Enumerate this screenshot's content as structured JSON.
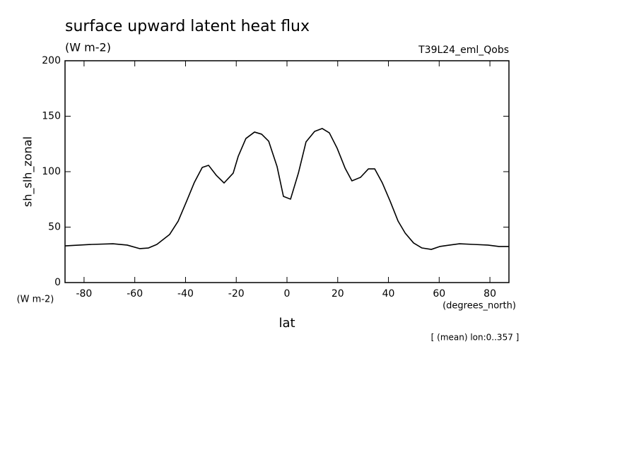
{
  "chart_data": {
    "type": "line",
    "title": "surface upward latent heat flux",
    "subtitle": "(W m-2)",
    "run_label": "T39L24_eml_Qobs",
    "y_label": "sh_slh_zonal",
    "y_units": "(W m-2)",
    "x_label": "lat",
    "x_units": "(degrees_north)",
    "note": "[ (mean) lon:0..357 ]",
    "x": [
      -87.5,
      -77,
      -68.6,
      -63,
      -58,
      -54.6,
      -51.3,
      -46.3,
      -42.9,
      -39.6,
      -36.5,
      -33.4,
      -30.9,
      -27.9,
      -24.8,
      -21.2,
      -19.2,
      -16.2,
      -12.8,
      -10,
      -7.2,
      -3.9,
      -1.4,
      1.4,
      4.5,
      7.5,
      10.9,
      13.9,
      16.7,
      19.8,
      22.9,
      25.6,
      29,
      32.1,
      34.6,
      37.6,
      40.7,
      43.8,
      46.6,
      49.9,
      53.2,
      56.9,
      60.2,
      64.1,
      68,
      73.6,
      79.2,
      83.6,
      87.5
    ],
    "series": [
      {
        "name": "sh_slh_zonal",
        "color": "#000000",
        "values": [
          33.1,
          34.4,
          35,
          33.8,
          30.6,
          31.2,
          34.4,
          43.3,
          55.4,
          73.2,
          90.4,
          103.8,
          105.7,
          96.8,
          89.8,
          98.7,
          114,
          129.9,
          135.7,
          133.8,
          127.4,
          104.5,
          77.7,
          75.2,
          98.7,
          126.8,
          136.3,
          138.9,
          135,
          121,
          103.2,
          91.7,
          94.9,
          102.5,
          102.5,
          89.8,
          73.2,
          55.4,
          44.6,
          35.7,
          31.2,
          29.9,
          32.5,
          33.8,
          35,
          34.4,
          33.8,
          32.5,
          32.5
        ]
      }
    ],
    "xlim": [
      -87.5,
      87.5
    ],
    "xticks": [
      -80,
      -60,
      -40,
      -20,
      0,
      20,
      40,
      60,
      80
    ],
    "ylim": [
      0,
      200
    ],
    "yticks": [
      0,
      50,
      100,
      150,
      200
    ],
    "grid": false
  }
}
